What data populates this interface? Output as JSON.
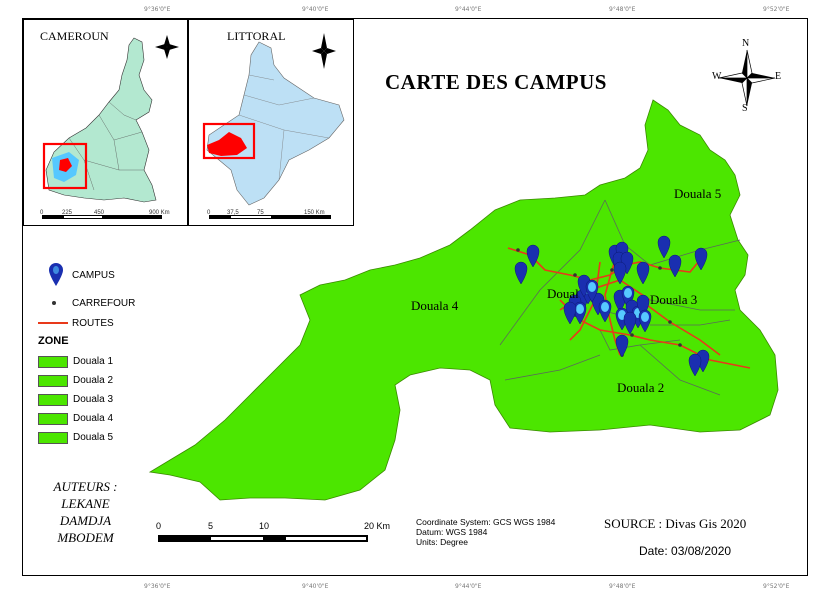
{
  "title": "CARTE DES CAMPUS",
  "insets": {
    "cameroun": {
      "title": "CAMEROUN",
      "scale_ticks": [
        "0",
        "225",
        "450",
        "900 Km"
      ]
    },
    "littoral": {
      "title": "LITTORAL",
      "scale_ticks": [
        "0",
        "37,5",
        "75",
        "150 Km"
      ]
    }
  },
  "north_arrow": {
    "n": "N",
    "s": "S",
    "e": "E",
    "w": "W"
  },
  "zones_on_map": [
    "Douala 5",
    "Douala 4",
    "Doual",
    "Douala 3",
    "Douala 2"
  ],
  "legend": {
    "campus": "CAMPUS",
    "carrefour": "CARREFOUR",
    "routes": "ROUTES",
    "zone_title": "ZONE",
    "zones": [
      "Douala 1",
      "Douala 2",
      "Douala 3",
      "Douala 4",
      "Douala 5"
    ]
  },
  "authors": {
    "label": "AUTEURS :",
    "names": [
      "LEKANE",
      "DAMDJA",
      "MBODEM"
    ]
  },
  "scale": {
    "ticks": [
      "0",
      "5",
      "10",
      "20 Km"
    ]
  },
  "coordinate_info": {
    "system": "Coordinate System: GCS WGS 1984",
    "datum": "Datum: WGS 1984",
    "units": "Units: Degree"
  },
  "source": "SOURCE : Divas Gis 2020",
  "date": "Date: 03/08/2020",
  "colors": {
    "zone_fill": "#4ce600",
    "campus_marker": "#1a2fb0",
    "campus_light": "#56c8ff",
    "route": "#e8391a",
    "inset_cameroun_fill": "#b3e8d0",
    "inset_littoral_fill": "#bde0f5",
    "highlight": "#ff0000"
  }
}
